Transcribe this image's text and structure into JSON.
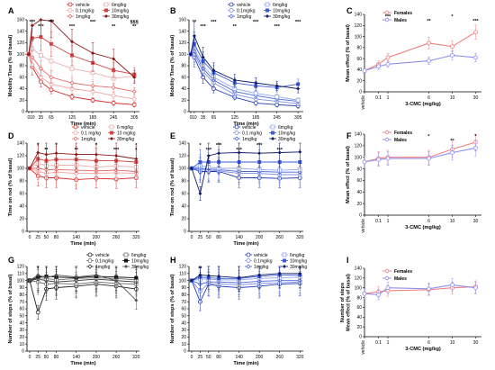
{
  "colors": {
    "red_series": [
      "#d62828",
      "#f4a3a3",
      "#e36a6a",
      "#e8b0b0",
      "#d64545",
      "#8b1a1a"
    ],
    "blue_series": [
      "#1f3bb3",
      "#7f8fe6",
      "#4a66d9",
      "#93a6ee",
      "#3d5ad8",
      "#0d1a66"
    ],
    "gray_series": [
      "#222222",
      "#666666",
      "#333333",
      "#777777",
      "#111111",
      "#555555"
    ],
    "females": "#f08080",
    "males": "#8f8ff0"
  },
  "chart_data": [
    {
      "id": "A",
      "type": "line",
      "xlabel": "Time (min)",
      "ylabel": "Mobility Time (% of basal)",
      "xticks": [
        "0",
        "10",
        "35",
        "65",
        "125",
        "185",
        "245",
        "305"
      ],
      "xtick_values": [
        0,
        10,
        35,
        65,
        125,
        185,
        245,
        305
      ],
      "xlim": [
        -5,
        320
      ],
      "ylim": [
        0,
        160
      ],
      "yticks": [
        "0",
        "20",
        "40",
        "60",
        "80",
        "100",
        "120",
        "140",
        "160"
      ],
      "legend": [
        "vehicle",
        "0.1mg/kg",
        "1mg/kg",
        "6mg/kg",
        "10mg/kg",
        "30mg/kg"
      ],
      "x": [
        0,
        10,
        35,
        65,
        125,
        185,
        245,
        305
      ],
      "series": [
        {
          "name": "vehicle",
          "values": [
            100,
            78,
            52,
            38,
            26,
            20,
            15,
            12
          ]
        },
        {
          "name": "0.1mg/kg",
          "values": [
            100,
            82,
            60,
            48,
            40,
            35,
            28,
            22
          ]
        },
        {
          "name": "1mg/kg",
          "values": [
            100,
            95,
            75,
            60,
            50,
            45,
            42,
            35
          ]
        },
        {
          "name": "6mg/kg",
          "values": [
            100,
            110,
            98,
            88,
            75,
            68,
            58,
            62
          ]
        },
        {
          "name": "10mg/kg",
          "values": [
            100,
            128,
            130,
            118,
            98,
            85,
            72,
            65
          ]
        },
        {
          "name": "30mg/kg",
          "values": [
            100,
            150,
            160,
            158,
            122,
            102,
            92,
            60
          ]
        }
      ],
      "annotations": [
        "***",
        "***",
        "***",
        "***",
        "***",
        "**",
        "§§§",
        "**"
      ]
    },
    {
      "id": "B",
      "type": "line",
      "xlabel": "Time (min)",
      "ylabel": "Mobility Time (% of basal)",
      "xticks": [
        "0",
        "10",
        "35",
        "65",
        "125",
        "185",
        "245",
        "305"
      ],
      "xtick_values": [
        0,
        10,
        35,
        65,
        125,
        185,
        245,
        305
      ],
      "xlim": [
        -5,
        320
      ],
      "ylim": [
        0,
        160
      ],
      "yticks": [
        "0",
        "20",
        "40",
        "60",
        "80",
        "100",
        "120",
        "140",
        "160"
      ],
      "legend": [
        "vehicle",
        "0.1mg/kg",
        "1mg/kg",
        "6mg/kg",
        "10mg/kg",
        "30mg/kg"
      ],
      "x": [
        0,
        10,
        35,
        65,
        125,
        185,
        245,
        305
      ],
      "series": [
        {
          "name": "vehicle",
          "values": [
            100,
            95,
            60,
            40,
            25,
            15,
            12,
            10
          ]
        },
        {
          "name": "0.1mg/kg",
          "values": [
            100,
            100,
            70,
            50,
            30,
            22,
            18,
            14
          ]
        },
        {
          "name": "1mg/kg",
          "values": [
            100,
            105,
            75,
            55,
            35,
            28,
            22,
            18
          ]
        },
        {
          "name": "6mg/kg",
          "values": [
            100,
            110,
            80,
            60,
            40,
            32,
            26,
            20
          ]
        },
        {
          "name": "10mg/kg",
          "values": [
            100,
            118,
            88,
            68,
            50,
            45,
            42,
            48
          ]
        },
        {
          "name": "30mg/kg",
          "values": [
            100,
            132,
            95,
            72,
            55,
            50,
            45,
            40
          ]
        }
      ],
      "annotations": [
        "**",
        "***",
        "***",
        "**",
        "***",
        "***",
        "***"
      ]
    },
    {
      "id": "C",
      "type": "line",
      "xlabel": "3-CMC (mg/kg)",
      "ylabel": "Mean effect (% of basal)",
      "xticks": [
        "vehicle",
        "0.1",
        "1",
        "6",
        "10",
        "30"
      ],
      "ylim": [
        0,
        140
      ],
      "yticks": [
        "0",
        "20",
        "40",
        "60",
        "80",
        "100",
        "120",
        "140"
      ],
      "legend": [
        "Females",
        "Males"
      ],
      "x": [
        "vehicle",
        "0.1",
        "1",
        "6",
        "10",
        "30"
      ],
      "series": [
        {
          "name": "Females",
          "values": [
            38,
            50,
            62,
            88,
            82,
            108
          ]
        },
        {
          "name": "Males",
          "values": [
            38,
            46,
            50,
            56,
            66,
            62
          ]
        }
      ],
      "annotations": [
        "***",
        "**",
        "*",
        "***"
      ]
    },
    {
      "id": "D",
      "type": "line",
      "xlabel": "Time (min)",
      "ylabel": "Time on rod (% of basal)",
      "xticks": [
        "0",
        "25",
        "50",
        "80",
        "140",
        "200",
        "260",
        "320"
      ],
      "xtick_values": [
        0,
        25,
        50,
        80,
        140,
        200,
        260,
        320
      ],
      "xlim": [
        -8,
        330
      ],
      "ylim": [
        0,
        140
      ],
      "yticks": [
        "0",
        "20",
        "40",
        "60",
        "80",
        "100",
        "120",
        "140"
      ],
      "legend": [
        "vehicle",
        "0.1 mg/kg",
        "1mg/kg",
        "6 mg/kg",
        "10 mg/kg",
        "30mg/kg"
      ],
      "x": [
        0,
        25,
        50,
        80,
        140,
        200,
        260,
        320
      ],
      "series": [
        {
          "name": "vehicle",
          "values": [
            100,
            88,
            85,
            85,
            82,
            84,
            83,
            85
          ]
        },
        {
          "name": "0.1 mg/kg",
          "values": [
            100,
            95,
            92,
            94,
            92,
            92,
            93,
            92
          ]
        },
        {
          "name": "1mg/kg",
          "values": [
            100,
            100,
            98,
            98,
            97,
            96,
            97,
            95
          ]
        },
        {
          "name": "6 mg/kg",
          "values": [
            100,
            108,
            104,
            105,
            105,
            102,
            104,
            102
          ]
        },
        {
          "name": "10 mg/kg",
          "values": [
            100,
            115,
            112,
            114,
            114,
            112,
            112,
            110
          ]
        },
        {
          "name": "30mg/kg",
          "values": [
            100,
            125,
            122,
            124,
            122,
            122,
            120,
            115
          ]
        }
      ],
      "annotations": [
        "*",
        "**",
        "*",
        "**",
        "*",
        "***",
        "*",
        "*"
      ]
    },
    {
      "id": "E",
      "type": "line",
      "xlabel": "Time (min)",
      "ylabel": "Time on rod (% of basal)",
      "xticks": [
        "0",
        "25",
        "50",
        "80",
        "140",
        "200",
        "260",
        "320"
      ],
      "xtick_values": [
        0,
        25,
        50,
        80,
        140,
        200,
        260,
        320
      ],
      "xlim": [
        -8,
        330
      ],
      "ylim": [
        0,
        140
      ],
      "yticks": [
        "0",
        "20",
        "40",
        "60",
        "80",
        "100",
        "120",
        "140"
      ],
      "legend": [
        "vehicle",
        "0.1 mg/kg",
        "1mg/kg",
        "6mg/kg",
        "10mg/kg",
        "30mg/kg"
      ],
      "x": [
        0,
        25,
        50,
        80,
        140,
        200,
        260,
        320
      ],
      "series": [
        {
          "name": "vehicle",
          "values": [
            100,
            95,
            95,
            95,
            85,
            85,
            84,
            85
          ]
        },
        {
          "name": "0.1 mg/kg",
          "values": [
            100,
            98,
            97,
            96,
            92,
            92,
            90,
            90
          ]
        },
        {
          "name": "1mg/kg",
          "values": [
            100,
            100,
            99,
            98,
            95,
            95,
            94,
            94
          ]
        },
        {
          "name": "6mg/kg",
          "values": [
            100,
            104,
            102,
            100,
            100,
            98,
            97,
            98
          ]
        },
        {
          "name": "10mg/kg",
          "values": [
            100,
            110,
            110,
            110,
            110,
            110,
            110,
            110
          ]
        },
        {
          "name": "30mg/kg",
          "values": [
            100,
            60,
            120,
            124,
            125,
            124,
            125,
            126
          ]
        }
      ],
      "annotations": [
        "*",
        "***",
        "***",
        "***",
        "***",
        "***"
      ]
    },
    {
      "id": "F",
      "type": "line",
      "xlabel": "3-CMC (mg/kg)",
      "ylabel": "Mean effect (% of basal)",
      "xticks": [
        "vehicle",
        "0.1",
        "1",
        "6",
        "10",
        "30"
      ],
      "ylim": [
        0,
        140
      ],
      "yticks": [
        "0",
        "20",
        "40",
        "60",
        "80",
        "100",
        "120",
        "140"
      ],
      "legend": [
        "Females",
        "Males"
      ],
      "x": [
        "vehicle",
        "0.1",
        "1",
        "6",
        "10",
        "30"
      ],
      "series": [
        {
          "name": "Females",
          "values": [
            92,
            98,
            100,
            100,
            114,
            126
          ]
        },
        {
          "name": "Males",
          "values": [
            92,
            96,
            98,
            98,
            108,
            116
          ]
        }
      ],
      "annotations": [
        "*",
        "**",
        "*"
      ]
    },
    {
      "id": "G",
      "type": "line",
      "xlabel": "Time (min)",
      "ylabel": "Number of steps (% of basal)",
      "xticks": [
        "0",
        "25",
        "50",
        "80",
        "140",
        "200",
        "260",
        "320"
      ],
      "xtick_values": [
        0,
        25,
        50,
        80,
        140,
        200,
        260,
        320
      ],
      "xlim": [
        -8,
        330
      ],
      "ylim": [
        0,
        120
      ],
      "yticks": [
        "0",
        "10",
        "20",
        "30",
        "40",
        "50",
        "60",
        "70",
        "80",
        "90",
        "100",
        "110",
        "120"
      ],
      "legend": [
        "vehicle",
        "0.1mg/kg",
        "1mg/kg",
        "6mg/kg",
        "10mg/kg",
        "30mg/kg"
      ],
      "x": [
        0,
        25,
        50,
        80,
        140,
        200,
        260,
        320
      ],
      "series": [
        {
          "name": "vehicle",
          "values": [
            100,
            55,
            88,
            90,
            92,
            95,
            92,
            88
          ]
        },
        {
          "name": "0.1mg/kg",
          "values": [
            100,
            98,
            95,
            96,
            95,
            98,
            96,
            95
          ]
        },
        {
          "name": "1mg/kg",
          "values": [
            100,
            102,
            100,
            98,
            100,
            102,
            100,
            98
          ]
        },
        {
          "name": "6mg/kg",
          "values": [
            100,
            104,
            103,
            101,
            103,
            104,
            103,
            101
          ]
        },
        {
          "name": "10mg/kg",
          "values": [
            100,
            105,
            106,
            105,
            104,
            106,
            105,
            104
          ]
        },
        {
          "name": "30mg/kg",
          "values": [
            100,
            108,
            104,
            108,
            105,
            108,
            100,
            72
          ]
        }
      ],
      "annotations": [
        "*"
      ]
    },
    {
      "id": "H",
      "type": "line",
      "xlabel": "Time (min)",
      "ylabel": "Number of steps (% of basal)",
      "xticks": [
        "0",
        "25",
        "50",
        "80",
        "140",
        "200",
        "260",
        "320"
      ],
      "xtick_values": [
        0,
        25,
        50,
        80,
        140,
        200,
        260,
        320
      ],
      "xlim": [
        -8,
        330
      ],
      "ylim": [
        0,
        120
      ],
      "yticks": [
        "0",
        "10",
        "20",
        "30",
        "40",
        "50",
        "60",
        "70",
        "80",
        "90",
        "100",
        "110",
        "120"
      ],
      "legend": [
        "vehicle",
        "0.1mg/kg",
        "1mg/kg",
        "6mg/kg",
        "10mg/kg",
        "30mg/kg"
      ],
      "x": [
        0,
        25,
        50,
        80,
        140,
        200,
        260,
        320
      ],
      "series": [
        {
          "name": "vehicle",
          "values": [
            100,
            70,
            95,
            92,
            90,
            92,
            95,
            96
          ]
        },
        {
          "name": "0.1mg/kg",
          "values": [
            100,
            85,
            96,
            95,
            94,
            96,
            97,
            98
          ]
        },
        {
          "name": "1mg/kg",
          "values": [
            100,
            95,
            98,
            98,
            97,
            99,
            100,
            100
          ]
        },
        {
          "name": "6mg/kg",
          "values": [
            100,
            102,
            102,
            101,
            101,
            103,
            104,
            105
          ]
        },
        {
          "name": "10mg/kg",
          "values": [
            100,
            105,
            104,
            103,
            103,
            106,
            108,
            108
          ]
        },
        {
          "name": "30mg/kg",
          "values": [
            100,
            108,
            107,
            106,
            104,
            108,
            110,
            110
          ]
        }
      ],
      "annotations": [
        "**"
      ]
    },
    {
      "id": "I",
      "type": "line",
      "xlabel": "3-CMC (mg/kg)",
      "ylabel": "Number of steps\nMean effect (% of basal)",
      "xticks": [
        "vehicle",
        "0.1",
        "1",
        "6",
        "10",
        "30"
      ],
      "ylim": [
        0,
        140
      ],
      "yticks": [
        "0",
        "20",
        "40",
        "60",
        "80",
        "100",
        "120",
        "140"
      ],
      "legend": [
        "Females",
        "Males"
      ],
      "x": [
        "vehicle",
        "0.1",
        "1",
        "6",
        "10",
        "30"
      ],
      "series": [
        {
          "name": "Females",
          "values": [
            88,
            92,
            94,
            96,
            100,
            102
          ]
        },
        {
          "name": "Males",
          "values": [
            88,
            86,
            100,
            98,
            106,
            100
          ]
        }
      ],
      "annotations": []
    }
  ]
}
